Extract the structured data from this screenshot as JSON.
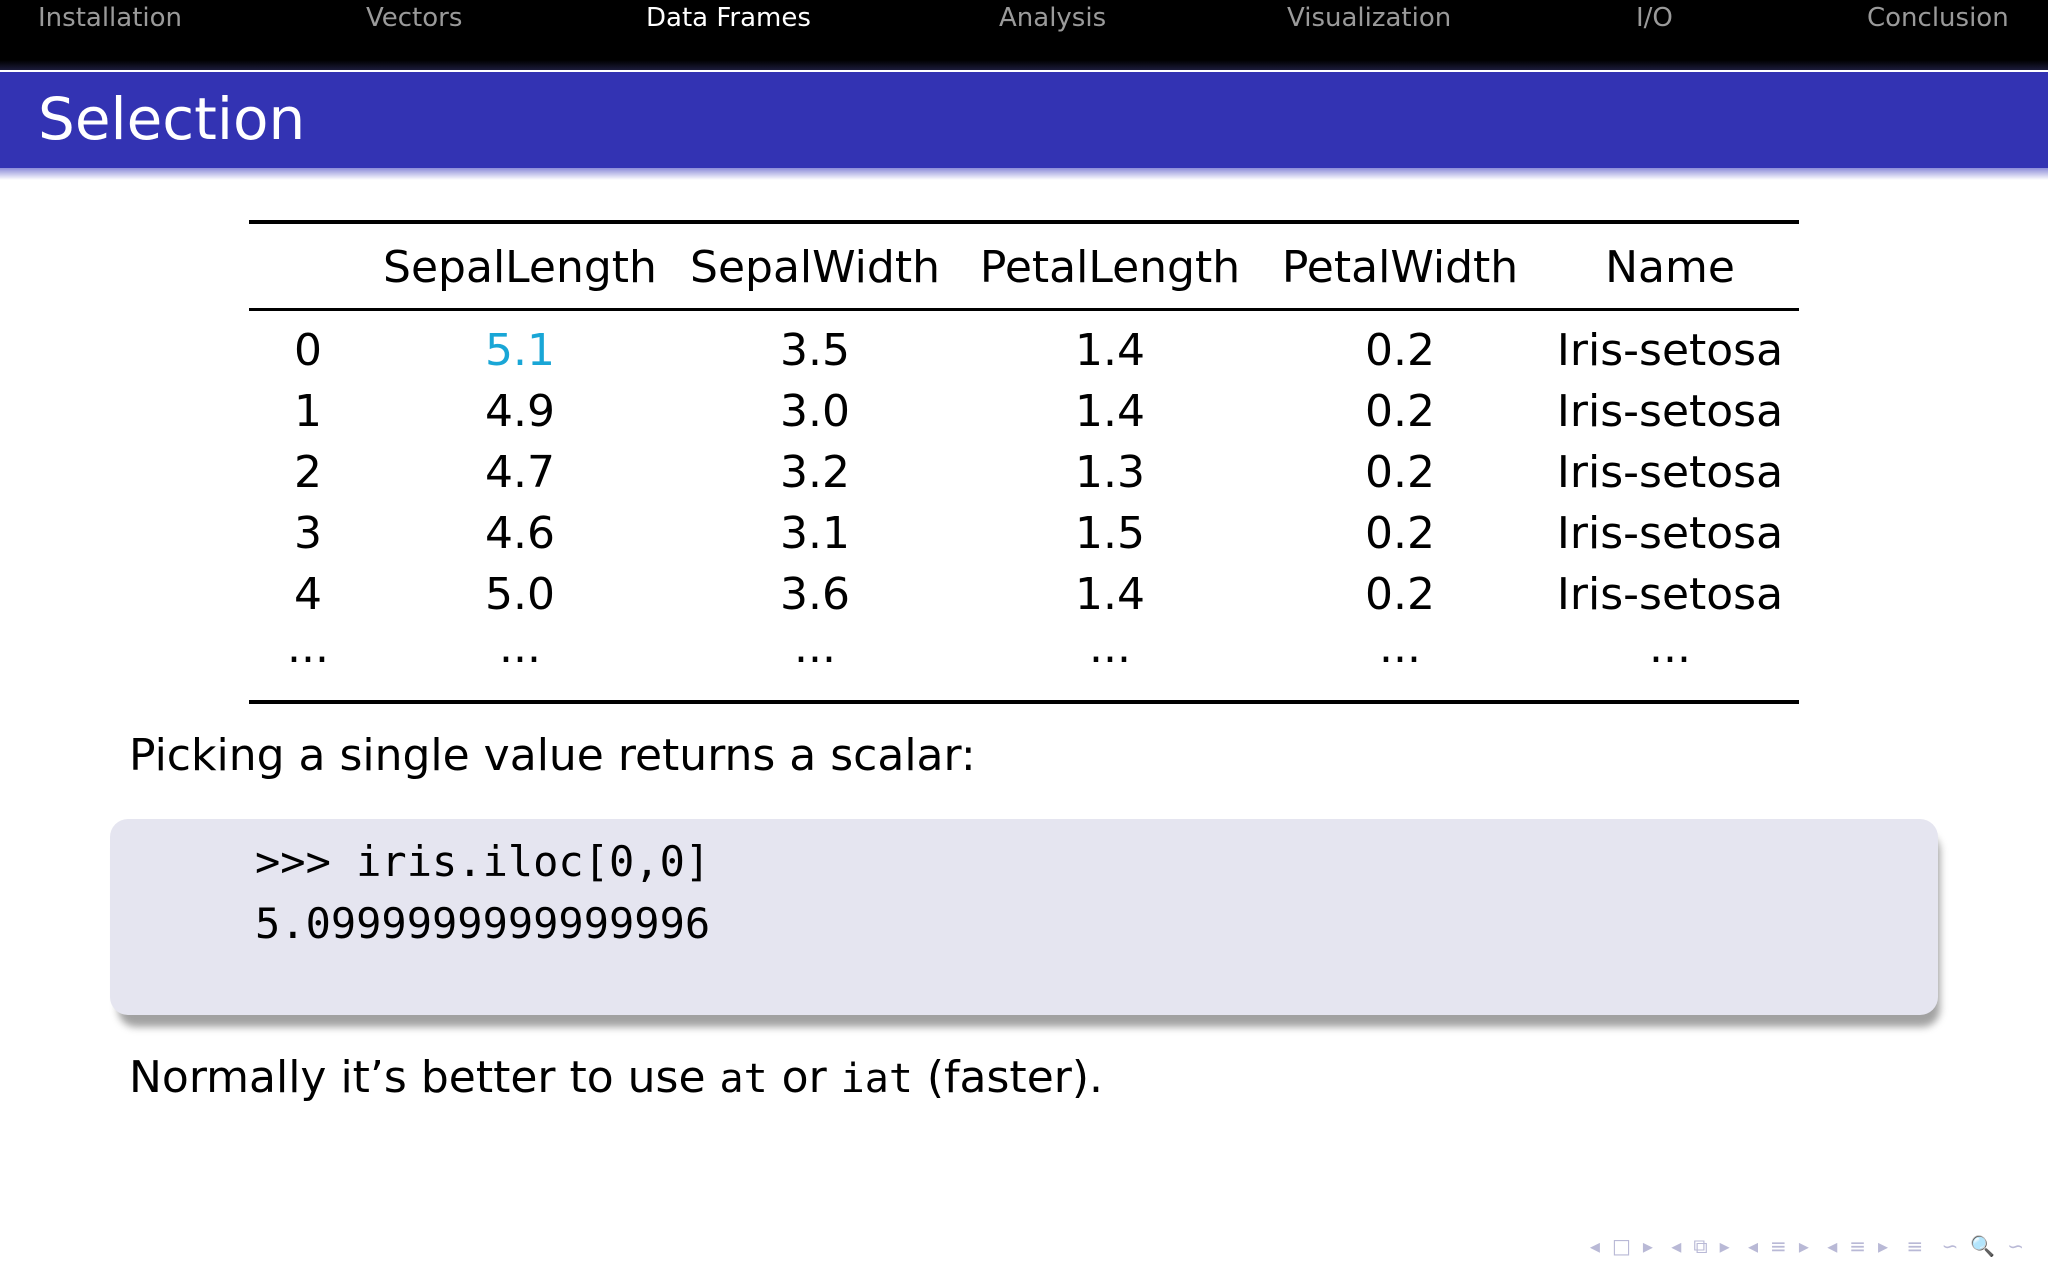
{
  "nav": {
    "items": [
      {
        "label": "Installation",
        "active": false
      },
      {
        "label": "Vectors",
        "active": false
      },
      {
        "label": "Data Frames",
        "active": true
      },
      {
        "label": "Analysis",
        "active": false
      },
      {
        "label": "Visualization",
        "active": false
      },
      {
        "label": "I/O",
        "active": false
      },
      {
        "label": "Conclusion",
        "active": false
      }
    ]
  },
  "frame": {
    "title": "Selection"
  },
  "table": {
    "columns": [
      "",
      "SepalLength",
      "SepalWidth",
      "PetalLength",
      "PetalWidth",
      "Name"
    ],
    "rows": [
      [
        "0",
        "5.1",
        "3.5",
        "1.4",
        "0.2",
        "Iris-setosa"
      ],
      [
        "1",
        "4.9",
        "3.0",
        "1.4",
        "0.2",
        "Iris-setosa"
      ],
      [
        "2",
        "4.7",
        "3.2",
        "1.3",
        "0.2",
        "Iris-setosa"
      ],
      [
        "3",
        "4.6",
        "3.1",
        "1.5",
        "0.2",
        "Iris-setosa"
      ],
      [
        "4",
        "5.0",
        "3.6",
        "1.4",
        "0.2",
        "Iris-setosa"
      ],
      [
        "...",
        "...",
        "...",
        "...",
        "...",
        "..."
      ]
    ],
    "highlight_color": "#19a6d6"
  },
  "text": {
    "intro": "Picking a single value returns a scalar:",
    "outro_prefix": "Normally it’s better to use ",
    "outro_code1": "at",
    "outro_mid": " or ",
    "outro_code2": "iat",
    "outro_suffix": " (faster)."
  },
  "code": {
    "line1": ">>> iris.iloc[0,0]",
    "line2": "5.0999999999999996"
  },
  "colors": {
    "navbar": "#000000",
    "titlebar": "#3333b3",
    "code_background": "#e5e5f0"
  },
  "nav_symbols": [
    "◂",
    "□",
    "▸",
    "◂",
    "⧉",
    "▸",
    "◂",
    "≡",
    "▸",
    "◂",
    "≡",
    "▸",
    "≡",
    "∽",
    "🔍",
    "∽"
  ]
}
